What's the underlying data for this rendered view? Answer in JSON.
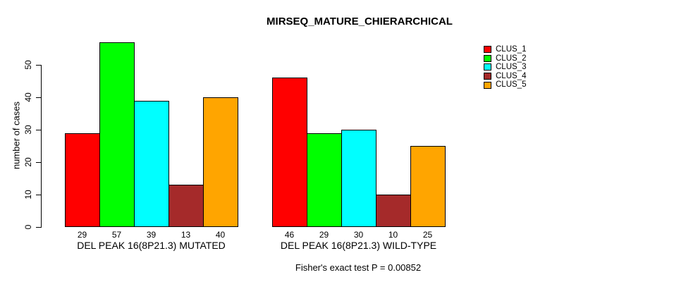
{
  "chart_data": {
    "type": "bar",
    "title": "MIRSEQ_MATURE_CHIERARCHICAL",
    "ylabel": "number of cases",
    "xlabel": "",
    "categories": [
      "DEL PEAK 16(8P21.3) MUTATED",
      "DEL PEAK 16(8P21.3) WILD-TYPE"
    ],
    "series": [
      {
        "name": "CLUS_1",
        "color": "#FF0000",
        "values": [
          29,
          46
        ]
      },
      {
        "name": "CLUS_2",
        "color": "#00FF00",
        "values": [
          57,
          29
        ]
      },
      {
        "name": "CLUS_3",
        "color": "#00FFFF",
        "values": [
          39,
          30
        ]
      },
      {
        "name": "CLUS_4",
        "color": "#A52A2A",
        "values": [
          13,
          10
        ]
      },
      {
        "name": "CLUS_5",
        "color": "#FFA500",
        "values": [
          40,
          25
        ]
      }
    ],
    "yticks": [
      0,
      10,
      20,
      30,
      40,
      50
    ],
    "ylim": [
      0,
      57
    ],
    "grid": false,
    "show_bar_values": true,
    "legend_position": "right-outside",
    "annotation": "Fisher's exact test P = 0.00852"
  }
}
